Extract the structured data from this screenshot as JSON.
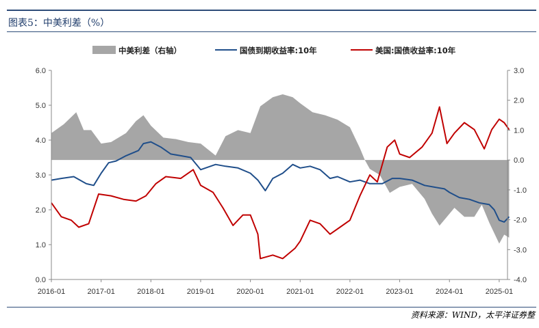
{
  "title": "图表5：中美利差（%）",
  "source": "资料来源：WIND，太平洋证券整",
  "chart_data": {
    "type": "line",
    "legend_position": "top",
    "x_tick_labels": [
      "2016-01",
      "2017-01",
      "2018-01",
      "2019-01",
      "2020-01",
      "2021-01",
      "2022-01",
      "2023-01",
      "2024-01",
      "2025-01"
    ],
    "x_range": [
      "2016-01",
      "2025-03"
    ],
    "y_left": {
      "range": [
        0,
        6
      ],
      "ticks": [
        "0.0",
        "1.0",
        "2.0",
        "3.0",
        "4.0",
        "5.0",
        "6.0"
      ]
    },
    "y_right": {
      "range": [
        -4,
        3
      ],
      "ticks": [
        "-4.0",
        "-3.0",
        "-2.0",
        "-1.0",
        "0.0",
        "1.0",
        "2.0",
        "3.0"
      ]
    },
    "series": [
      {
        "name": "中美利差（右轴）",
        "type": "area",
        "axis": "right",
        "color": "#a6a6a6",
        "points": [
          [
            2016.0,
            0.9
          ],
          [
            2016.25,
            1.2
          ],
          [
            2016.5,
            1.6
          ],
          [
            2016.65,
            1.0
          ],
          [
            2016.8,
            1.0
          ],
          [
            2017.0,
            0.55
          ],
          [
            2017.2,
            0.6
          ],
          [
            2017.5,
            0.9
          ],
          [
            2017.7,
            1.3
          ],
          [
            2017.85,
            1.5
          ],
          [
            2018.0,
            1.15
          ],
          [
            2018.25,
            0.75
          ],
          [
            2018.5,
            0.7
          ],
          [
            2018.75,
            0.6
          ],
          [
            2019.0,
            0.55
          ],
          [
            2019.3,
            0.15
          ],
          [
            2019.5,
            0.8
          ],
          [
            2019.75,
            1.0
          ],
          [
            2020.0,
            0.9
          ],
          [
            2020.2,
            1.8
          ],
          [
            2020.45,
            2.1
          ],
          [
            2020.65,
            2.2
          ],
          [
            2020.85,
            2.1
          ],
          [
            2021.0,
            1.9
          ],
          [
            2021.25,
            1.6
          ],
          [
            2021.5,
            1.5
          ],
          [
            2021.75,
            1.35
          ],
          [
            2022.0,
            1.1
          ],
          [
            2022.2,
            0.4
          ],
          [
            2022.3,
            0.0
          ],
          [
            2022.4,
            -0.3
          ],
          [
            2022.6,
            -0.5
          ],
          [
            2022.8,
            -1.1
          ],
          [
            2023.0,
            -0.9
          ],
          [
            2023.25,
            -0.8
          ],
          [
            2023.5,
            -1.3
          ],
          [
            2023.65,
            -1.8
          ],
          [
            2023.8,
            -2.2
          ],
          [
            2023.95,
            -1.9
          ],
          [
            2024.1,
            -1.6
          ],
          [
            2024.3,
            -1.9
          ],
          [
            2024.5,
            -1.9
          ],
          [
            2024.65,
            -1.5
          ],
          [
            2024.8,
            -2.1
          ],
          [
            2025.0,
            -2.8
          ],
          [
            2025.1,
            -2.5
          ],
          [
            2025.2,
            -2.6
          ]
        ]
      },
      {
        "name": "国债到期收益率:10年",
        "type": "line",
        "axis": "left",
        "color": "#1f4e8a",
        "points": [
          [
            2016.0,
            2.85
          ],
          [
            2016.2,
            2.9
          ],
          [
            2016.45,
            2.95
          ],
          [
            2016.7,
            2.75
          ],
          [
            2016.85,
            2.7
          ],
          [
            2017.0,
            3.05
          ],
          [
            2017.15,
            3.35
          ],
          [
            2017.3,
            3.4
          ],
          [
            2017.5,
            3.55
          ],
          [
            2017.75,
            3.7
          ],
          [
            2017.85,
            3.9
          ],
          [
            2018.0,
            3.95
          ],
          [
            2018.2,
            3.8
          ],
          [
            2018.4,
            3.6
          ],
          [
            2018.6,
            3.55
          ],
          [
            2018.8,
            3.5
          ],
          [
            2019.0,
            3.15
          ],
          [
            2019.3,
            3.3
          ],
          [
            2019.5,
            3.25
          ],
          [
            2019.75,
            3.2
          ],
          [
            2020.0,
            3.05
          ],
          [
            2020.15,
            2.85
          ],
          [
            2020.3,
            2.55
          ],
          [
            2020.45,
            2.9
          ],
          [
            2020.65,
            3.05
          ],
          [
            2020.85,
            3.3
          ],
          [
            2021.0,
            3.2
          ],
          [
            2021.2,
            3.25
          ],
          [
            2021.4,
            3.15
          ],
          [
            2021.6,
            2.9
          ],
          [
            2021.75,
            2.95
          ],
          [
            2022.0,
            2.8
          ],
          [
            2022.2,
            2.85
          ],
          [
            2022.4,
            2.75
          ],
          [
            2022.65,
            2.75
          ],
          [
            2022.85,
            2.9
          ],
          [
            2023.0,
            2.9
          ],
          [
            2023.25,
            2.85
          ],
          [
            2023.5,
            2.7
          ],
          [
            2023.7,
            2.65
          ],
          [
            2023.9,
            2.6
          ],
          [
            2024.0,
            2.5
          ],
          [
            2024.2,
            2.35
          ],
          [
            2024.4,
            2.3
          ],
          [
            2024.6,
            2.2
          ],
          [
            2024.8,
            2.15
          ],
          [
            2024.9,
            2.0
          ],
          [
            2025.0,
            1.7
          ],
          [
            2025.1,
            1.65
          ],
          [
            2025.2,
            1.8
          ]
        ]
      },
      {
        "name": "美国:国债收益率:10年",
        "type": "line",
        "axis": "left",
        "color": "#c00000",
        "points": [
          [
            2016.0,
            2.2
          ],
          [
            2016.2,
            1.8
          ],
          [
            2016.4,
            1.7
          ],
          [
            2016.55,
            1.5
          ],
          [
            2016.75,
            1.6
          ],
          [
            2016.95,
            2.45
          ],
          [
            2017.2,
            2.4
          ],
          [
            2017.45,
            2.3
          ],
          [
            2017.7,
            2.25
          ],
          [
            2017.9,
            2.4
          ],
          [
            2018.1,
            2.75
          ],
          [
            2018.3,
            2.95
          ],
          [
            2018.6,
            2.9
          ],
          [
            2018.85,
            3.15
          ],
          [
            2019.0,
            2.7
          ],
          [
            2019.25,
            2.5
          ],
          [
            2019.45,
            2.05
          ],
          [
            2019.65,
            1.55
          ],
          [
            2019.85,
            1.85
          ],
          [
            2020.0,
            1.85
          ],
          [
            2020.15,
            1.3
          ],
          [
            2020.2,
            0.6
          ],
          [
            2020.45,
            0.7
          ],
          [
            2020.65,
            0.6
          ],
          [
            2020.9,
            0.9
          ],
          [
            2021.0,
            1.1
          ],
          [
            2021.2,
            1.7
          ],
          [
            2021.4,
            1.6
          ],
          [
            2021.6,
            1.3
          ],
          [
            2021.8,
            1.5
          ],
          [
            2022.0,
            1.7
          ],
          [
            2022.2,
            2.4
          ],
          [
            2022.4,
            3.0
          ],
          [
            2022.55,
            2.8
          ],
          [
            2022.75,
            3.8
          ],
          [
            2022.9,
            4.0
          ],
          [
            2023.0,
            3.6
          ],
          [
            2023.2,
            3.5
          ],
          [
            2023.45,
            3.8
          ],
          [
            2023.65,
            4.2
          ],
          [
            2023.8,
            4.95
          ],
          [
            2023.95,
            3.9
          ],
          [
            2024.1,
            4.2
          ],
          [
            2024.3,
            4.5
          ],
          [
            2024.5,
            4.3
          ],
          [
            2024.7,
            3.75
          ],
          [
            2024.85,
            4.3
          ],
          [
            2025.0,
            4.6
          ],
          [
            2025.1,
            4.5
          ],
          [
            2025.2,
            4.3
          ]
        ]
      }
    ]
  }
}
